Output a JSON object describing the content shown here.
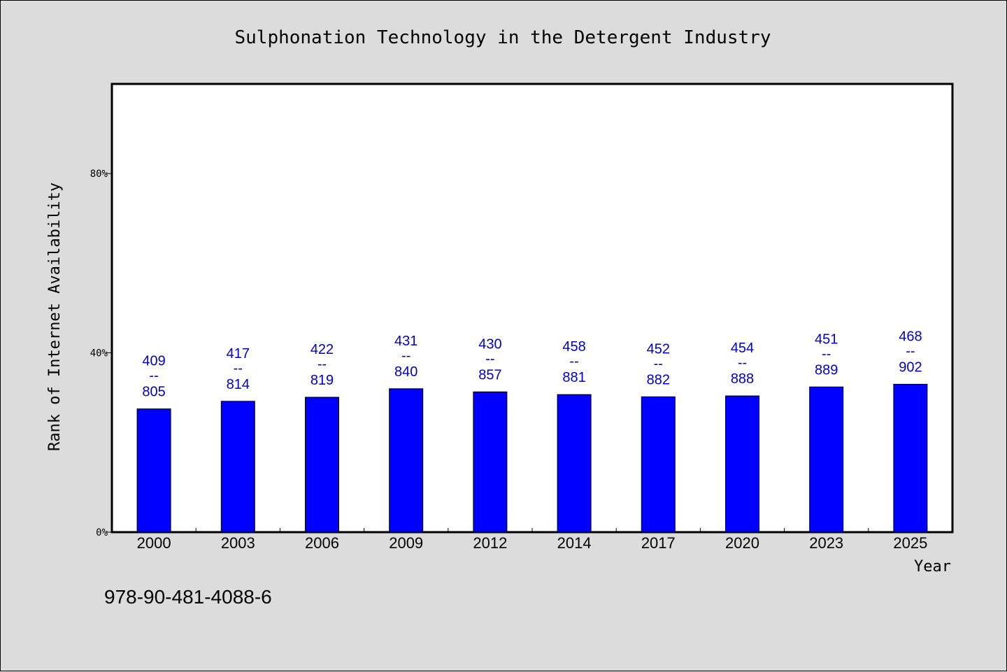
{
  "chart_data": {
    "type": "bar",
    "title": "Sulphonation Technology in the Detergent Industry",
    "xlabel": "Year",
    "ylabel": "Rank of Internet Availability",
    "categories": [
      "2000",
      "2003",
      "2006",
      "2009",
      "2012",
      "2014",
      "2017",
      "2020",
      "2023",
      "2025"
    ],
    "values": [
      27.5,
      29.2,
      30.1,
      32.0,
      31.3,
      30.7,
      30.2,
      30.4,
      32.4,
      33.0
    ],
    "labels": [
      {
        "top": "409",
        "sep": "--",
        "bottom": "805"
      },
      {
        "top": "417",
        "sep": "--",
        "bottom": "814"
      },
      {
        "top": "422",
        "sep": "--",
        "bottom": "819"
      },
      {
        "top": "431",
        "sep": "--",
        "bottom": "840"
      },
      {
        "top": "430",
        "sep": "--",
        "bottom": "857"
      },
      {
        "top": "458",
        "sep": "--",
        "bottom": "881"
      },
      {
        "top": "452",
        "sep": "--",
        "bottom": "882"
      },
      {
        "top": "454",
        "sep": "--",
        "bottom": "888"
      },
      {
        "top": "451",
        "sep": "--",
        "bottom": "889"
      },
      {
        "top": "468",
        "sep": "--",
        "bottom": "902"
      }
    ],
    "ylim": [
      0,
      100
    ],
    "yticks": [
      {
        "value": 0,
        "label": "0%"
      },
      {
        "value": 40,
        "label": "40%"
      },
      {
        "value": 80,
        "label": "80%"
      }
    ],
    "grid": false,
    "bar_color": "#0000ff",
    "label_color": "#0000cc",
    "background": "#dcdcdc",
    "plot_background": "#ffffff"
  },
  "footer": {
    "isbn": "978-90-481-4088-6"
  }
}
